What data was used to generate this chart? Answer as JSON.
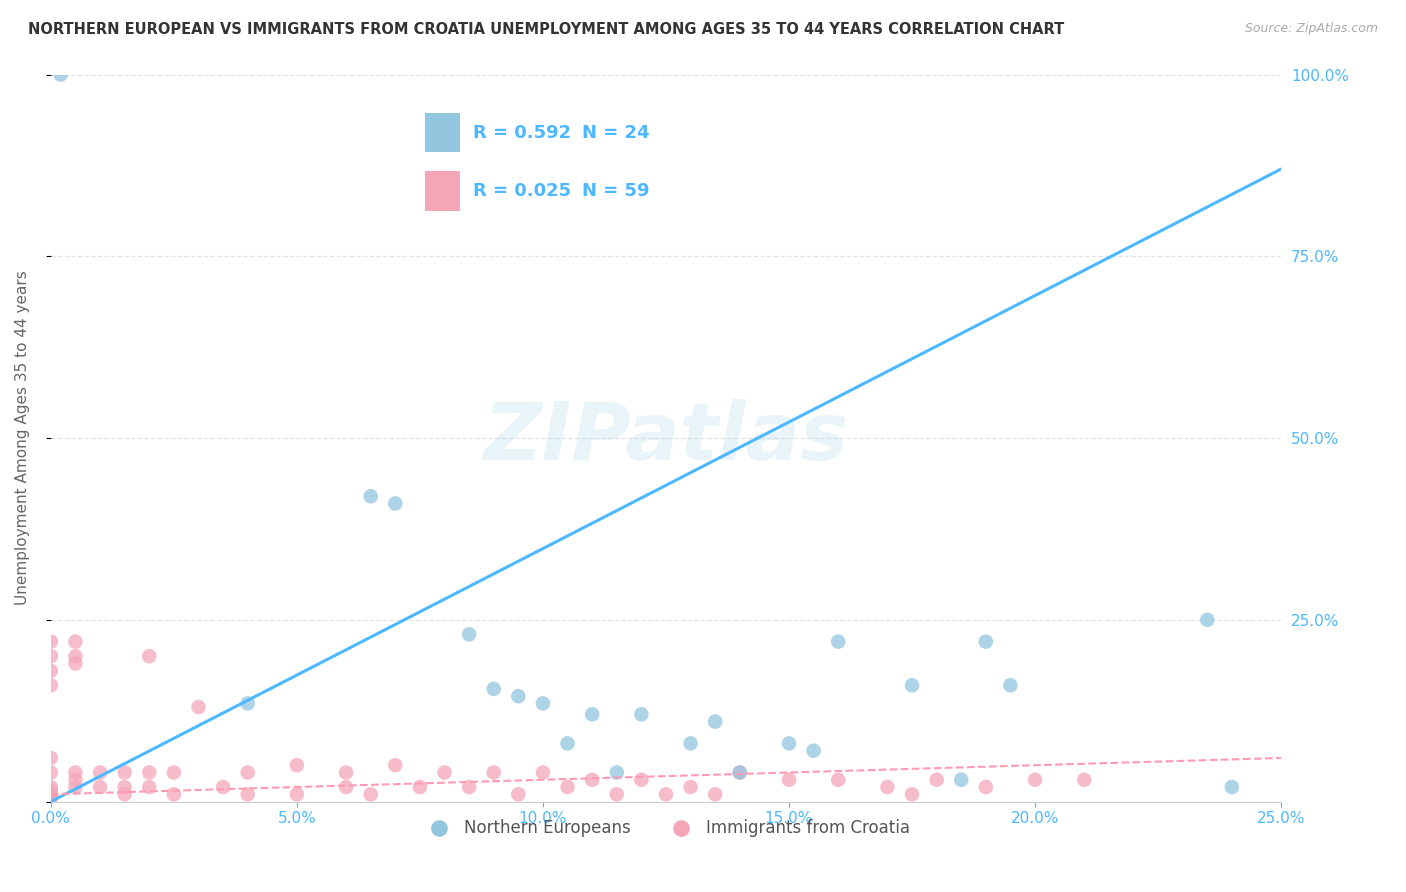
{
  "title": "NORTHERN EUROPEAN VS IMMIGRANTS FROM CROATIA UNEMPLOYMENT AMONG AGES 35 TO 44 YEARS CORRELATION CHART",
  "source": "Source: ZipAtlas.com",
  "ylabel": "Unemployment Among Ages 35 to 44 years",
  "xlim": [
    0.0,
    0.25
  ],
  "ylim": [
    0.0,
    1.0
  ],
  "xticks": [
    0.0,
    0.05,
    0.1,
    0.15,
    0.2,
    0.25
  ],
  "xtick_labels": [
    "0.0%",
    "5.0%",
    "10.0%",
    "15.0%",
    "20.0%",
    "25.0%"
  ],
  "yticks": [
    0.0,
    0.25,
    0.5,
    0.75,
    1.0
  ],
  "ytick_labels": [
    "",
    "25.0%",
    "50.0%",
    "75.0%",
    "100.0%"
  ],
  "blue_color": "#92c5de",
  "pink_color": "#f4a6b8",
  "blue_line_color": "#4db8ff",
  "pink_line_color": "#ff9ab2",
  "legend_r_blue": "R = 0.592",
  "legend_n_blue": "N = 24",
  "legend_r_pink": "R = 0.025",
  "legend_n_pink": "N = 59",
  "legend_label_blue": "Northern Europeans",
  "legend_label_pink": "Immigrants from Croatia",
  "watermark": "ZIPatlas",
  "background_color": "#ffffff",
  "grid_color": "#dddddd",
  "blue_scatter_x": [
    0.002,
    0.04,
    0.065,
    0.07,
    0.085,
    0.09,
    0.095,
    0.1,
    0.105,
    0.11,
    0.115,
    0.12,
    0.13,
    0.135,
    0.14,
    0.15,
    0.155,
    0.16,
    0.175,
    0.185,
    0.19,
    0.195,
    0.235,
    0.24
  ],
  "blue_scatter_y": [
    1.0,
    0.135,
    0.42,
    0.41,
    0.23,
    0.155,
    0.145,
    0.135,
    0.08,
    0.12,
    0.04,
    0.12,
    0.08,
    0.11,
    0.04,
    0.08,
    0.07,
    0.22,
    0.16,
    0.03,
    0.22,
    0.16,
    0.25,
    0.02
  ],
  "pink_scatter_x": [
    0.0,
    0.0,
    0.0,
    0.0,
    0.0,
    0.0,
    0.0,
    0.0,
    0.0,
    0.0,
    0.0,
    0.005,
    0.005,
    0.005,
    0.005,
    0.005,
    0.005,
    0.01,
    0.01,
    0.015,
    0.015,
    0.015,
    0.02,
    0.02,
    0.02,
    0.025,
    0.025,
    0.03,
    0.035,
    0.04,
    0.04,
    0.05,
    0.05,
    0.06,
    0.06,
    0.065,
    0.07,
    0.075,
    0.08,
    0.085,
    0.09,
    0.095,
    0.1,
    0.105,
    0.11,
    0.115,
    0.12,
    0.125,
    0.13,
    0.135,
    0.14,
    0.15,
    0.16,
    0.17,
    0.175,
    0.18,
    0.19,
    0.2,
    0.21
  ],
  "pink_scatter_y": [
    0.22,
    0.2,
    0.18,
    0.16,
    0.06,
    0.04,
    0.02,
    0.015,
    0.01,
    0.008,
    0.005,
    0.22,
    0.2,
    0.19,
    0.04,
    0.03,
    0.02,
    0.04,
    0.02,
    0.04,
    0.02,
    0.01,
    0.2,
    0.04,
    0.02,
    0.04,
    0.01,
    0.13,
    0.02,
    0.04,
    0.01,
    0.05,
    0.01,
    0.04,
    0.02,
    0.01,
    0.05,
    0.02,
    0.04,
    0.02,
    0.04,
    0.01,
    0.04,
    0.02,
    0.03,
    0.01,
    0.03,
    0.01,
    0.02,
    0.01,
    0.04,
    0.03,
    0.03,
    0.02,
    0.01,
    0.03,
    0.02,
    0.03,
    0.03
  ],
  "title_color": "#333333",
  "axis_label_color": "#666666",
  "tick_color": "#4db8ff",
  "R_color": "#4db8ff",
  "right_ytick_color": "#4db8ff"
}
